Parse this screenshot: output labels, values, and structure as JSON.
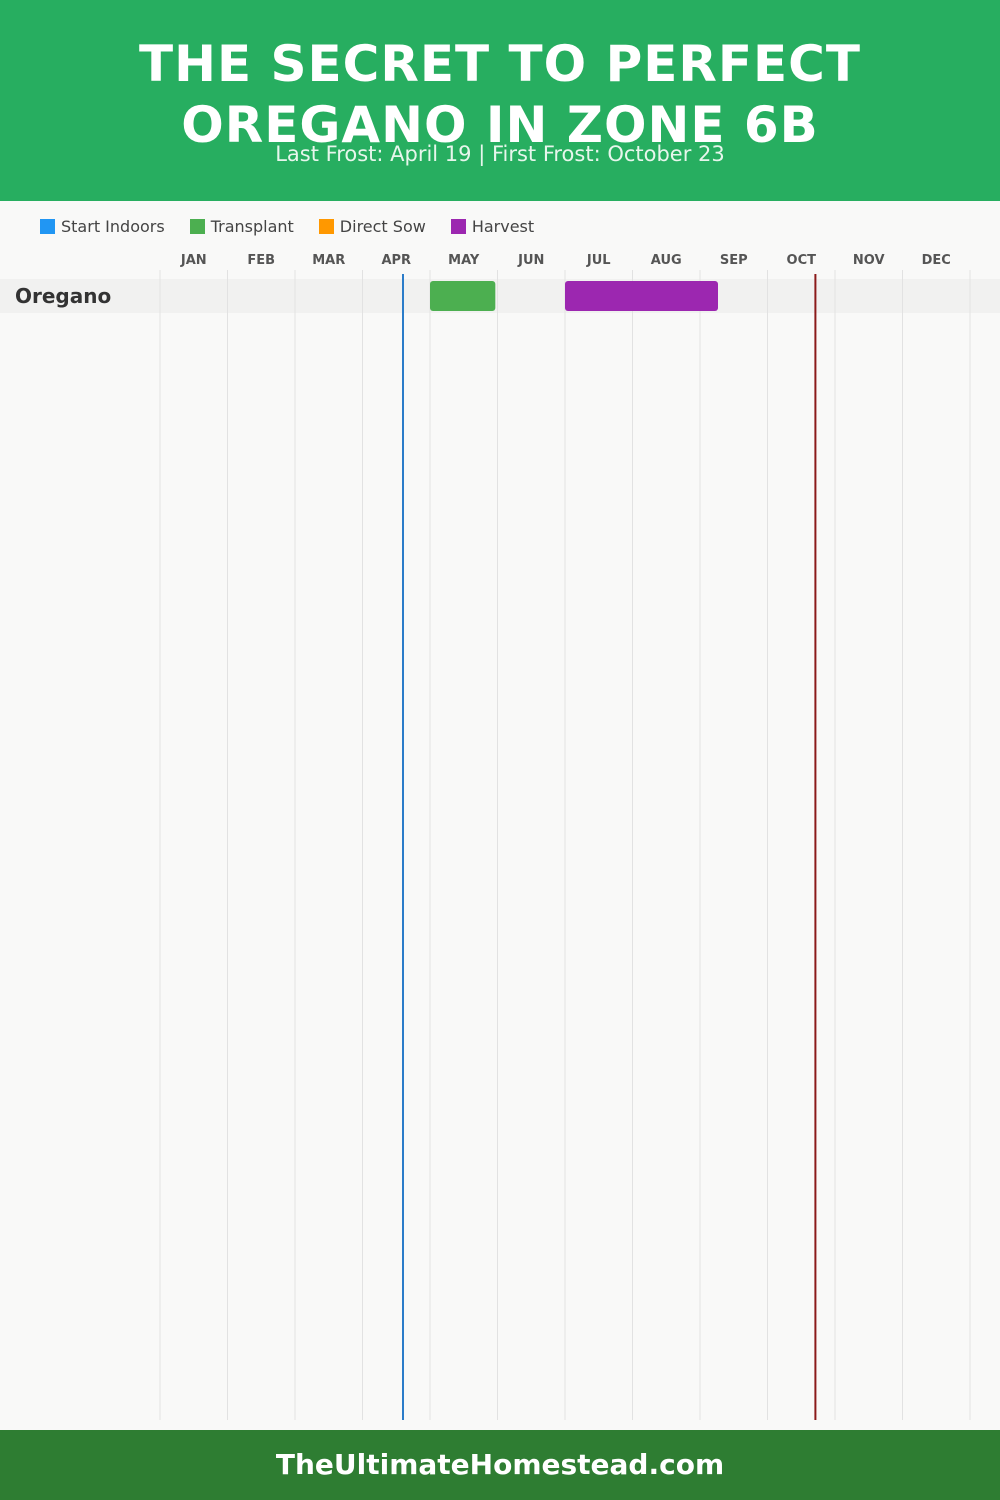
{
  "header": {
    "title_line1": "THE SECRET TO PERFECT",
    "title_line2": "OREGANO IN ZONE 6B",
    "subtitle": "Last Frost: April 19 | First Frost: October 23"
  },
  "footer": {
    "text": "TheUltimateHomestead.com"
  },
  "colors": {
    "header_bg": "#27ae60",
    "footer_bg": "#2e7d32",
    "start_indoors": "#2196f3",
    "transplant": "#4caf50",
    "direct_sow": "#ff9800",
    "harvest": "#9c27b0",
    "last_frost_line": "#2b7cc9",
    "first_frost_line": "#8b1a1a"
  },
  "chart_data": {
    "type": "gantt",
    "months": [
      "JAN",
      "FEB",
      "MAR",
      "APR",
      "MAY",
      "JUN",
      "JUL",
      "AUG",
      "SEP",
      "OCT",
      "NOV",
      "DEC"
    ],
    "legend": [
      {
        "label": "Start Indoors",
        "color": "#2196f3"
      },
      {
        "label": "Transplant",
        "color": "#4caf50"
      },
      {
        "label": "Direct Sow",
        "color": "#ff9800"
      },
      {
        "label": "Harvest",
        "color": "#9c27b0"
      }
    ],
    "markers": [
      {
        "name": "Last Frost",
        "date": "April 19",
        "color": "#2b7cc9"
      },
      {
        "name": "First Frost",
        "date": "October 23",
        "color": "#8b1a1a"
      }
    ],
    "rows": [
      {
        "crop": "Oregano",
        "bars": [
          {
            "phase": "Transplant",
            "start": "May 1",
            "end": "May 31",
            "color": "#4caf50"
          },
          {
            "phase": "Harvest",
            "start": "Jul 1",
            "end": "Sep 9",
            "color": "#9c27b0"
          }
        ]
      }
    ]
  }
}
